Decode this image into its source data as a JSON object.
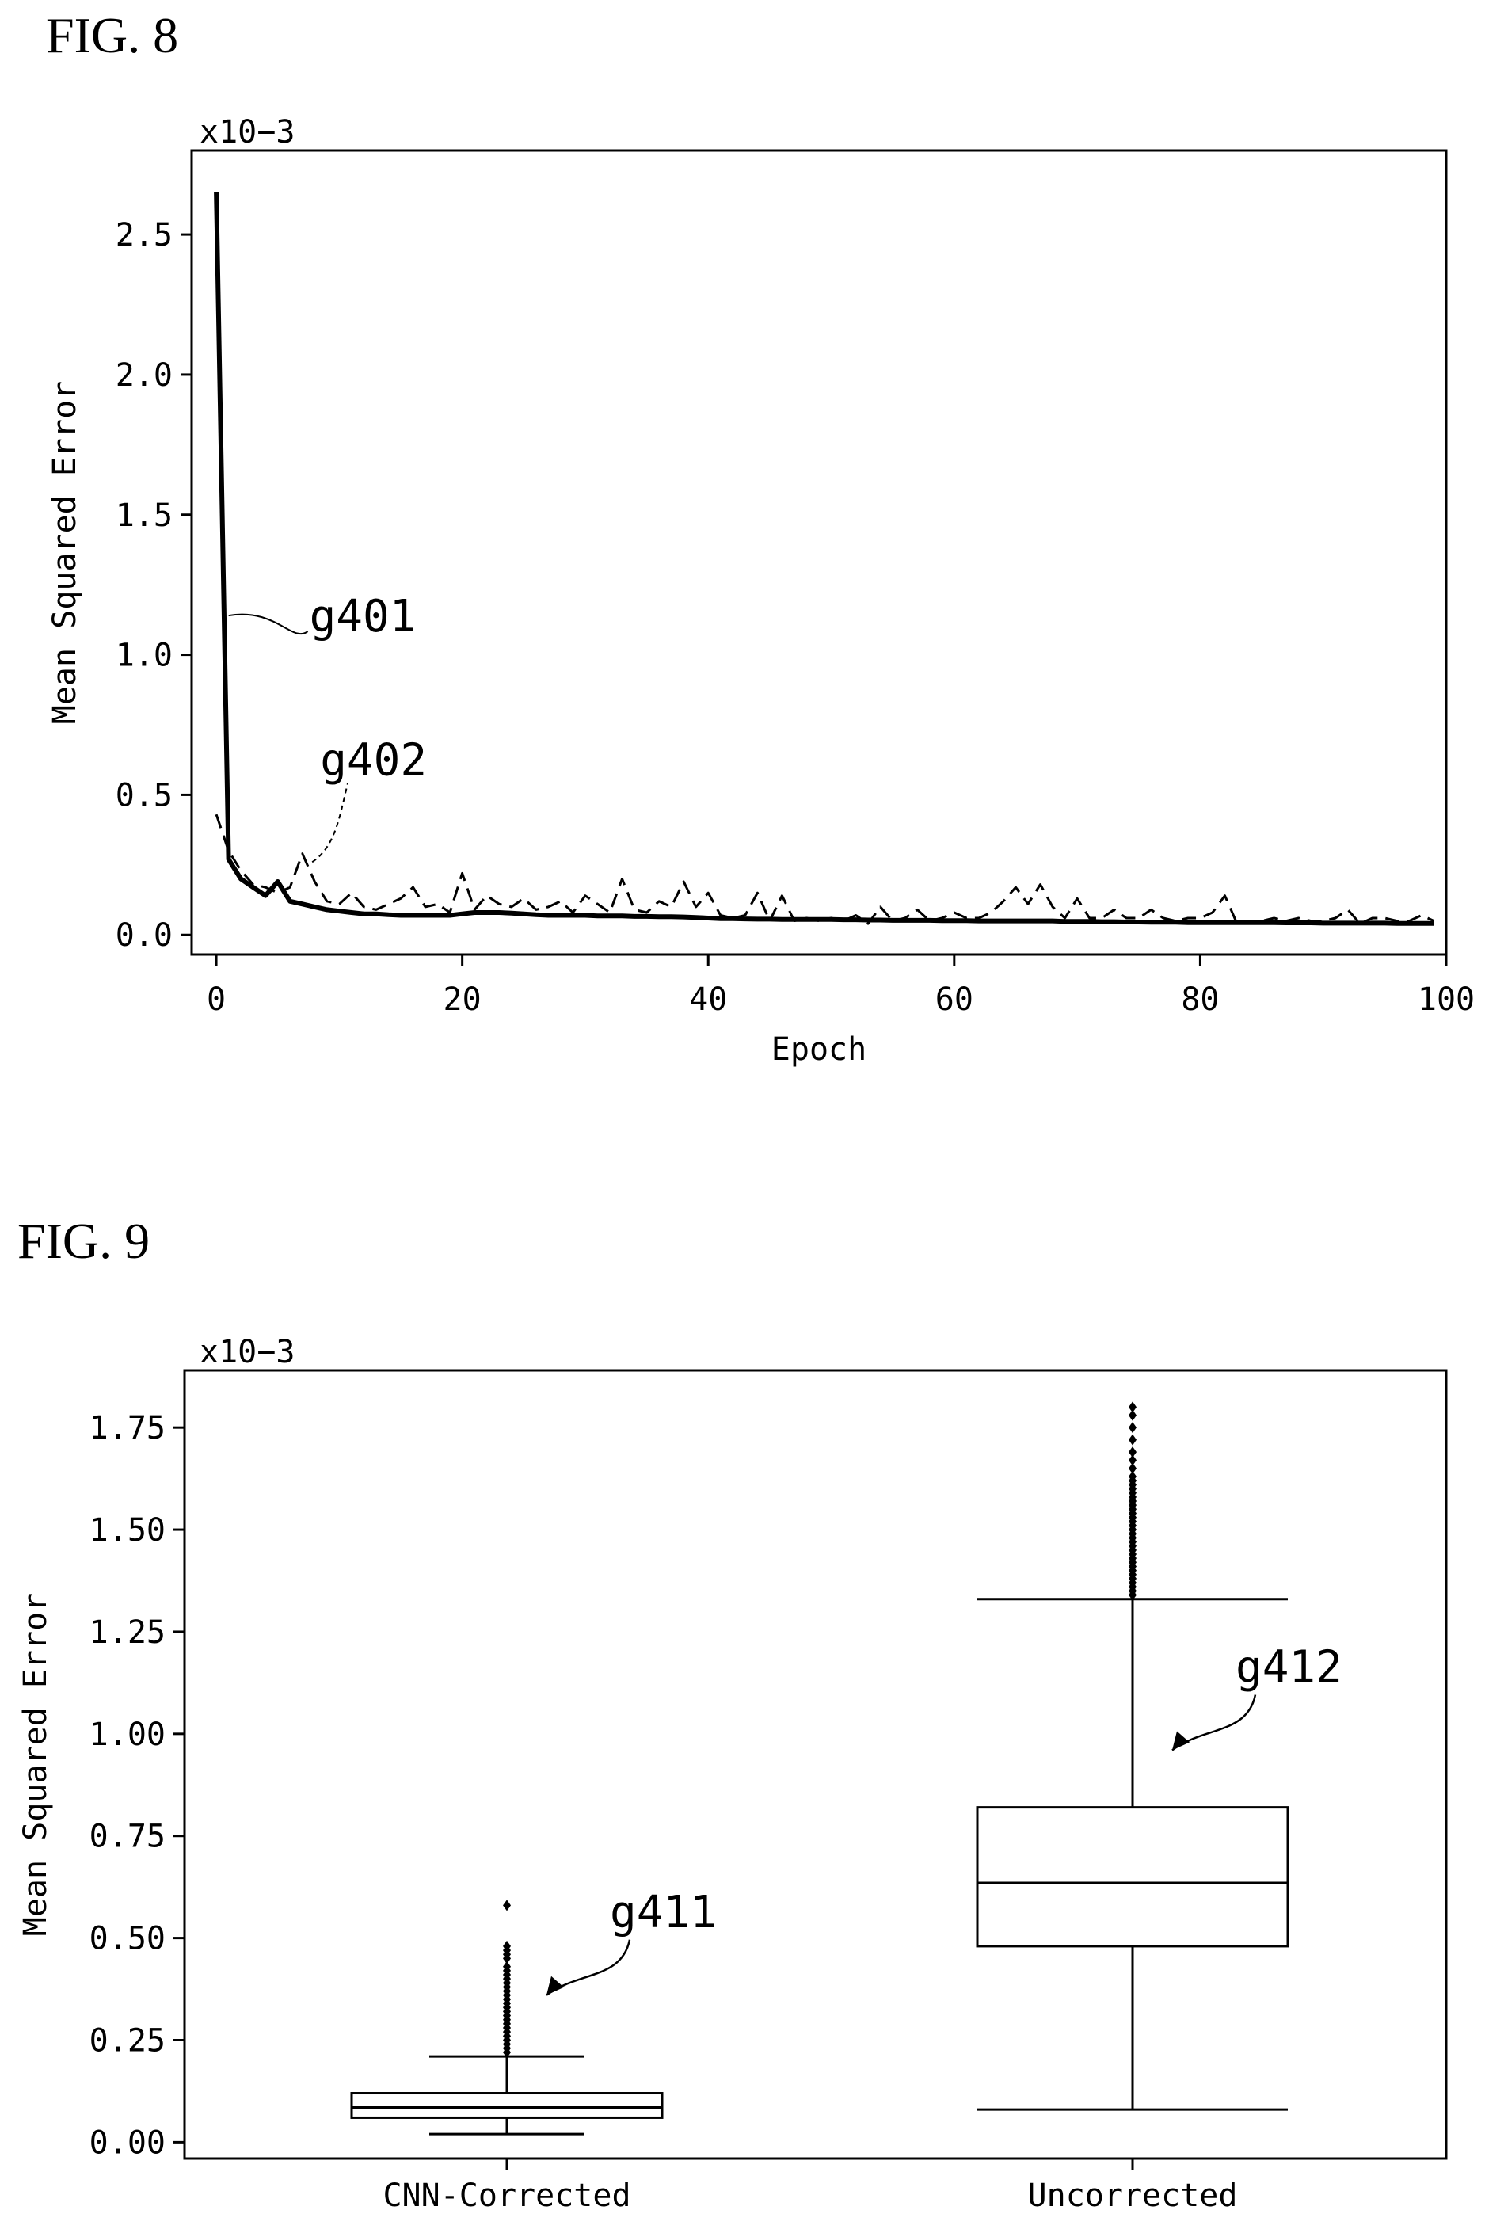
{
  "figures": {
    "fig8": {
      "label": "FIG. 8"
    },
    "fig9": {
      "label": "FIG. 9"
    }
  },
  "chart_data": [
    {
      "type": "line",
      "scale_note": "x10−3",
      "xlabel": "Epoch",
      "ylabel": "Mean Squared Error",
      "xlim": [
        -2,
        100
      ],
      "ylim": [
        -0.07,
        2.8
      ],
      "xticks": [
        "0",
        "20",
        "40",
        "60",
        "80",
        "100"
      ],
      "yticks": [
        "0.0",
        "0.5",
        "1.0",
        "1.5",
        "2.0",
        "2.5"
      ],
      "grid": false,
      "x": [
        0,
        1,
        2,
        3,
        4,
        5,
        6,
        7,
        8,
        9,
        10,
        11,
        12,
        13,
        14,
        15,
        16,
        17,
        18,
        19,
        20,
        21,
        22,
        23,
        24,
        25,
        26,
        27,
        28,
        29,
        30,
        31,
        32,
        33,
        34,
        35,
        36,
        37,
        38,
        39,
        40,
        41,
        42,
        43,
        44,
        45,
        46,
        47,
        48,
        49,
        50,
        51,
        52,
        53,
        54,
        55,
        56,
        57,
        58,
        59,
        60,
        61,
        62,
        63,
        64,
        65,
        66,
        67,
        68,
        69,
        70,
        71,
        72,
        73,
        74,
        75,
        76,
        77,
        78,
        79,
        80,
        81,
        82,
        83,
        84,
        85,
        86,
        87,
        88,
        89,
        90,
        91,
        92,
        93,
        94,
        95,
        96,
        97,
        98,
        99
      ],
      "series": [
        {
          "name": "",
          "style": "solid",
          "values": [
            2.65,
            0.27,
            0.2,
            0.17,
            0.14,
            0.19,
            0.12,
            0.11,
            0.1,
            0.09,
            0.085,
            0.08,
            0.075,
            0.075,
            0.072,
            0.07,
            0.07,
            0.07,
            0.07,
            0.07,
            0.075,
            0.08,
            0.08,
            0.08,
            0.078,
            0.075,
            0.072,
            0.07,
            0.07,
            0.07,
            0.07,
            0.068,
            0.068,
            0.068,
            0.066,
            0.066,
            0.065,
            0.065,
            0.064,
            0.062,
            0.06,
            0.058,
            0.058,
            0.057,
            0.056,
            0.056,
            0.055,
            0.055,
            0.055,
            0.055,
            0.055,
            0.054,
            0.054,
            0.053,
            0.053,
            0.052,
            0.052,
            0.052,
            0.052,
            0.051,
            0.051,
            0.051,
            0.05,
            0.05,
            0.05,
            0.05,
            0.05,
            0.05,
            0.05,
            0.048,
            0.048,
            0.048,
            0.047,
            0.047,
            0.046,
            0.046,
            0.045,
            0.045,
            0.045,
            0.044,
            0.044,
            0.044,
            0.044,
            0.044,
            0.044,
            0.044,
            0.044,
            0.043,
            0.043,
            0.043,
            0.042,
            0.042,
            0.042,
            0.042,
            0.042,
            0.042,
            0.041,
            0.041,
            0.041,
            0.041
          ]
        },
        {
          "name": "",
          "style": "dashed",
          "values": [
            0.43,
            0.3,
            0.23,
            0.18,
            0.17,
            0.15,
            0.17,
            0.29,
            0.19,
            0.12,
            0.11,
            0.15,
            0.1,
            0.09,
            0.11,
            0.13,
            0.17,
            0.1,
            0.11,
            0.08,
            0.22,
            0.09,
            0.14,
            0.11,
            0.1,
            0.13,
            0.09,
            0.1,
            0.12,
            0.08,
            0.14,
            0.11,
            0.08,
            0.2,
            0.09,
            0.08,
            0.12,
            0.1,
            0.19,
            0.1,
            0.15,
            0.07,
            0.06,
            0.07,
            0.15,
            0.05,
            0.14,
            0.05,
            0.06,
            0.05,
            0.06,
            0.05,
            0.07,
            0.04,
            0.1,
            0.05,
            0.06,
            0.09,
            0.05,
            0.06,
            0.08,
            0.06,
            0.06,
            0.08,
            0.12,
            0.17,
            0.11,
            0.18,
            0.1,
            0.06,
            0.13,
            0.06,
            0.06,
            0.09,
            0.06,
            0.06,
            0.09,
            0.06,
            0.05,
            0.06,
            0.06,
            0.08,
            0.14,
            0.04,
            0.05,
            0.05,
            0.06,
            0.05,
            0.06,
            0.05,
            0.05,
            0.06,
            0.09,
            0.04,
            0.06,
            0.06,
            0.05,
            0.05,
            0.07,
            0.05
          ]
        }
      ],
      "annotations": [
        {
          "text": "g401",
          "x": 1.0,
          "y": 1.14
        },
        {
          "text": "g402",
          "x": 7.8,
          "y": 0.26
        }
      ]
    },
    {
      "type": "box",
      "scale_note": "x10−3",
      "xlabel": "",
      "ylabel": "Mean Squared Error",
      "ylim": [
        -0.04,
        1.89
      ],
      "yticks": [
        "0.00",
        "0.25",
        "0.50",
        "0.75",
        "1.00",
        "1.25",
        "1.50",
        "1.75"
      ],
      "grid": false,
      "categories": [
        "CNN-Corrected",
        "Uncorrected"
      ],
      "boxes": [
        {
          "category": "CNN-Corrected",
          "whisker_low": 0.02,
          "q1": 0.06,
          "median": 0.085,
          "q3": 0.12,
          "whisker_high": 0.21,
          "outliers": [
            0.22,
            0.23,
            0.24,
            0.25,
            0.26,
            0.27,
            0.28,
            0.29,
            0.3,
            0.31,
            0.32,
            0.33,
            0.34,
            0.35,
            0.36,
            0.37,
            0.38,
            0.39,
            0.4,
            0.41,
            0.42,
            0.43,
            0.45,
            0.46,
            0.47,
            0.48,
            0.58
          ]
        },
        {
          "category": "Uncorrected",
          "whisker_low": 0.08,
          "q1": 0.48,
          "median": 0.635,
          "q3": 0.82,
          "whisker_high": 1.33,
          "outliers": [
            1.34,
            1.35,
            1.36,
            1.37,
            1.38,
            1.39,
            1.4,
            1.41,
            1.42,
            1.43,
            1.44,
            1.45,
            1.46,
            1.47,
            1.48,
            1.49,
            1.5,
            1.51,
            1.52,
            1.53,
            1.54,
            1.55,
            1.56,
            1.57,
            1.58,
            1.59,
            1.6,
            1.61,
            1.62,
            1.63,
            1.65,
            1.67,
            1.69,
            1.72,
            1.75,
            1.78,
            1.8
          ]
        }
      ],
      "annotations": [
        {
          "text": "g411",
          "category": "CNN-Corrected",
          "y": 0.36
        },
        {
          "text": "g412",
          "category": "Uncorrected",
          "y": 0.96
        }
      ]
    }
  ]
}
